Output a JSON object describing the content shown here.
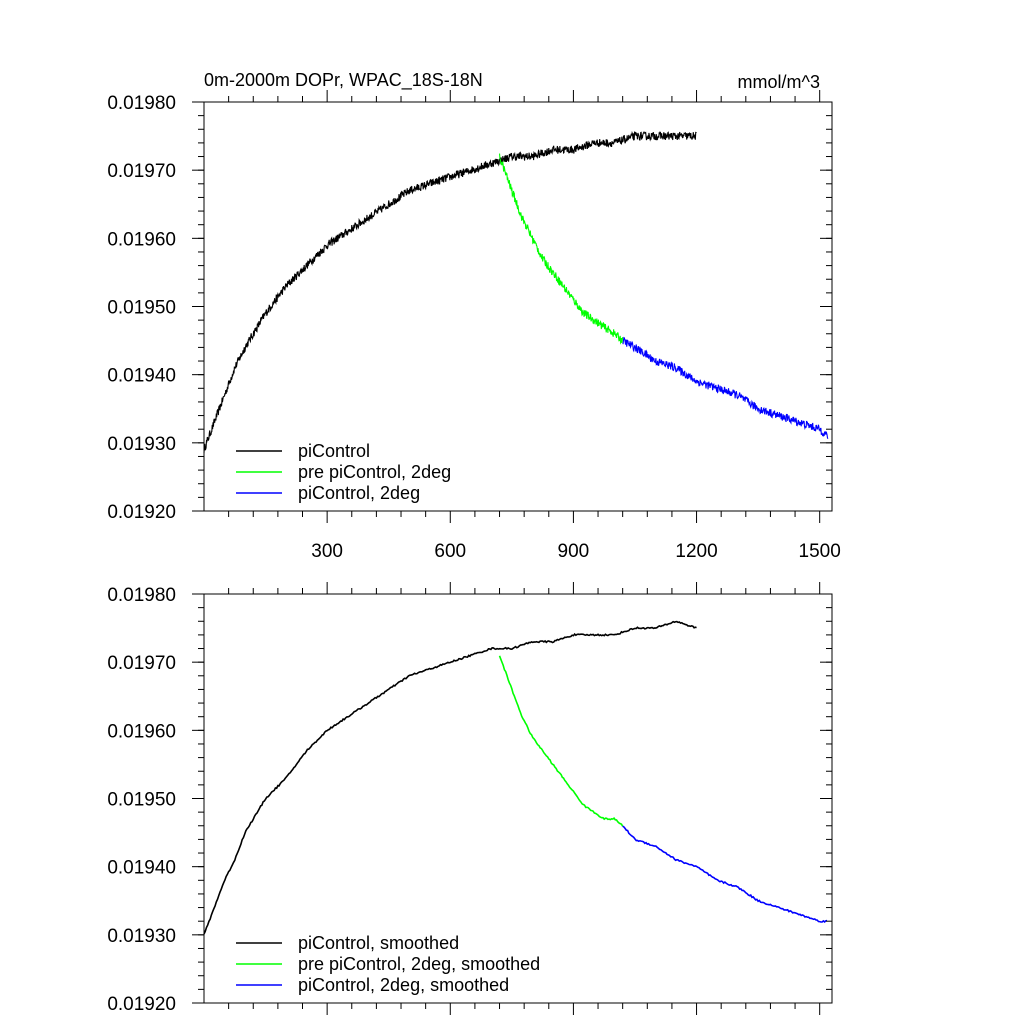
{
  "chart_data": [
    {
      "type": "line",
      "title": "0m-2000m DOPr, WPAC_18S-18N",
      "units": "mmol/m^3",
      "xlim": [
        0,
        1530
      ],
      "ylim": [
        0.0192,
        0.0198
      ],
      "x_ticks": [
        300,
        600,
        900,
        1200,
        1500
      ],
      "x_tick_labels": [
        "300",
        "600",
        "900",
        "1200",
        "1500"
      ],
      "y_ticks": [
        0.0192,
        0.0193,
        0.0194,
        0.0195,
        0.0196,
        0.0197,
        0.0198
      ],
      "y_tick_labels": [
        "0.01920",
        "0.01930",
        "0.01940",
        "0.01950",
        "0.01960",
        "0.01970",
        "0.01980"
      ],
      "legend_position": "bottom-left",
      "smoothed": false,
      "series": [
        {
          "name": "piControl",
          "color": "#000000",
          "x": [
            0,
            25,
            50,
            75,
            100,
            150,
            200,
            250,
            300,
            350,
            400,
            450,
            500,
            550,
            600,
            650,
            700,
            750,
            800,
            850,
            900,
            950,
            1000,
            1050,
            1100,
            1150,
            1200
          ],
          "y": [
            0.01929,
            0.01933,
            0.01937,
            0.01941,
            0.01944,
            0.01949,
            0.01953,
            0.01956,
            0.01959,
            0.01961,
            0.01963,
            0.01965,
            0.01967,
            0.01968,
            0.01969,
            0.0197,
            0.01971,
            0.01972,
            0.01972,
            0.01973,
            0.01973,
            0.01974,
            0.01974,
            0.01975,
            0.01975,
            0.01975,
            0.01975
          ]
        },
        {
          "name": "pre piControl, 2deg",
          "color": "#00ff00",
          "x": [
            720,
            750,
            775,
            800,
            825,
            850,
            875,
            900,
            925,
            950,
            975,
            1000,
            1020
          ],
          "y": [
            0.01972,
            0.01967,
            0.01963,
            0.0196,
            0.01957,
            0.01955,
            0.01953,
            0.01951,
            0.01949,
            0.01948,
            0.01947,
            0.01946,
            0.01945
          ]
        },
        {
          "name": "piControl, 2deg",
          "color": "#0000ff",
          "x": [
            1020,
            1050,
            1100,
            1150,
            1200,
            1250,
            1300,
            1350,
            1400,
            1450,
            1500,
            1520
          ],
          "y": [
            0.01945,
            0.01944,
            0.01942,
            0.01941,
            0.01939,
            0.01938,
            0.01937,
            0.01935,
            0.01934,
            0.01933,
            0.01932,
            0.01931
          ]
        }
      ]
    },
    {
      "type": "line",
      "title": "",
      "units": "",
      "xlim": [
        0,
        1530
      ],
      "ylim": [
        0.0192,
        0.0198
      ],
      "x_ticks": [
        300,
        600,
        900,
        1200,
        1500
      ],
      "x_tick_labels": [],
      "y_ticks": [
        0.0192,
        0.0193,
        0.0194,
        0.0195,
        0.0196,
        0.0197,
        0.0198
      ],
      "y_tick_labels": [
        "0.01920",
        "0.01930",
        "0.01940",
        "0.01950",
        "0.01960",
        "0.01970",
        "0.01980"
      ],
      "legend_position": "bottom-left",
      "smoothed": true,
      "series": [
        {
          "name": "piControl, smoothed",
          "color": "#000000",
          "x": [
            0,
            25,
            50,
            75,
            100,
            150,
            200,
            250,
            300,
            350,
            400,
            450,
            500,
            550,
            600,
            650,
            700,
            750,
            800,
            850,
            900,
            950,
            1000,
            1050,
            1100,
            1150,
            1200
          ],
          "y": [
            0.0193,
            0.01934,
            0.01938,
            0.01941,
            0.01945,
            0.0195,
            0.01953,
            0.01957,
            0.0196,
            0.01962,
            0.01964,
            0.01966,
            0.01968,
            0.01969,
            0.0197,
            0.01971,
            0.01972,
            0.01972,
            0.01973,
            0.01973,
            0.01974,
            0.01974,
            0.01974,
            0.01975,
            0.01975,
            0.01976,
            0.01975
          ]
        },
        {
          "name": "pre piControl, 2deg, smoothed",
          "color": "#00ff00",
          "x": [
            720,
            750,
            775,
            800,
            825,
            850,
            875,
            900,
            925,
            950,
            975,
            1000,
            1020
          ],
          "y": [
            0.01971,
            0.01966,
            0.01962,
            0.01959,
            0.01957,
            0.01955,
            0.01953,
            0.01951,
            0.01949,
            0.01948,
            0.01947,
            0.01947,
            0.01946
          ]
        },
        {
          "name": "piControl, 2deg, smoothed",
          "color": "#0000ff",
          "x": [
            1020,
            1050,
            1100,
            1150,
            1200,
            1250,
            1300,
            1350,
            1400,
            1450,
            1500,
            1520
          ],
          "y": [
            0.01946,
            0.01944,
            0.01943,
            0.01941,
            0.0194,
            0.01938,
            0.01937,
            0.01935,
            0.01934,
            0.01933,
            0.01932,
            0.01932
          ]
        }
      ]
    }
  ]
}
